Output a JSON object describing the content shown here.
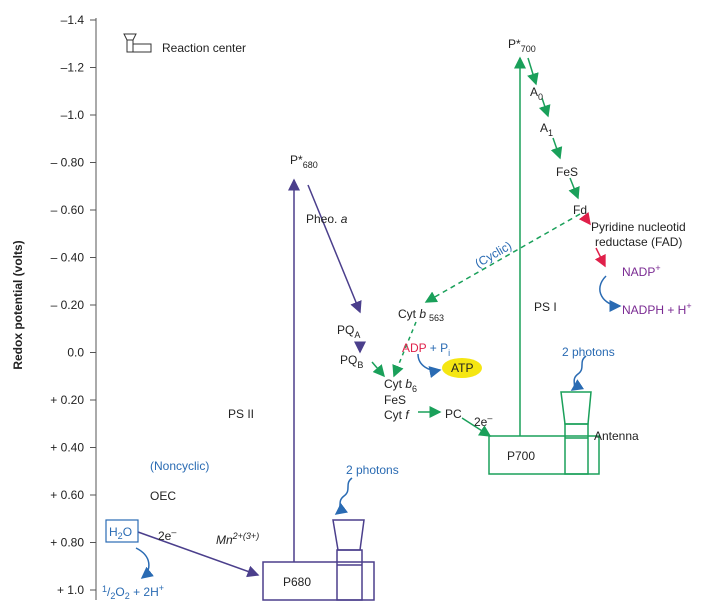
{
  "axis": {
    "label": "Redox potential (volts)",
    "ticks": [
      "–1.4",
      "–1.2",
      "–1.0",
      "– 0.80",
      "– 0.60",
      "– 0.40",
      "– 0.20",
      "0.0",
      "+ 0.20",
      "+ 0.40",
      "+ 0.60",
      "+ 0.80",
      "+ 1.0"
    ]
  },
  "legend": {
    "label": "Reaction center"
  },
  "labels": {
    "p700_star": "P*",
    "p700_star_sub": "700",
    "a0": "A",
    "a0_sub": "0",
    "a1": "A",
    "a1_sub": "1",
    "fes_top": "FeS",
    "fd": "Fd",
    "pyridine1": "Pyridine nucleotid",
    "pyridine2": "reductase (FAD)",
    "nadp": "NADP",
    "nadp_sup": "+",
    "nadph": "NADPH + H",
    "nadph_sup": "+",
    "ps1": "PS I",
    "cyclic": "(Cyclic)",
    "cyt_b563": "Cyt ",
    "cyt_b563_b": "b",
    "cyt_b563_sub": "563",
    "p680_star": "P*",
    "p680_star_sub": "680",
    "pheo": "Pheo. ",
    "pheo_a": "a",
    "pqa": "PQ",
    "pqa_sub": "A",
    "pqb": "PQ",
    "pqb_sub": "B",
    "adp": "ADP",
    "plus_pi": " + P",
    "pi_sub": "i",
    "atp": "ATP",
    "cytb6": "Cyt ",
    "cytb6_b": "b",
    "cytb6_sub": "6",
    "fes_mid": "FeS",
    "cytf": "Cyt ",
    "cytf_f": "f",
    "pc": "PC",
    "e_2_right": "2e",
    "e_2_right_sup": "–",
    "photons_right": "2 photons",
    "antenna": "Antenna",
    "p700_box": "P700",
    "ps2": "PS II",
    "noncyclic": "(Noncyclic)",
    "oec": "OEC",
    "h2o": "H",
    "h2o_sub": "2",
    "h2o_end": "O",
    "e_2_left": "2e",
    "e_2_left_sup": "–",
    "mn": "Mn",
    "mn_sup": "2+(3+)",
    "o2_part1": "1",
    "o2_part2": "/",
    "o2_part3": "2",
    "o2_part4": "O",
    "o2_sub": "2",
    "o2_part5": " + 2H",
    "o2_sup": "+",
    "photons_left": "2 photons",
    "p680_box": "P680"
  },
  "colors": {
    "ps2_arrow": "#4b3f8c",
    "green": "#1aa05a",
    "blue_text": "#2a6bb3",
    "purple_text": "#7a2a92",
    "red": "#e0204a",
    "atp_fill": "#f5e612"
  }
}
